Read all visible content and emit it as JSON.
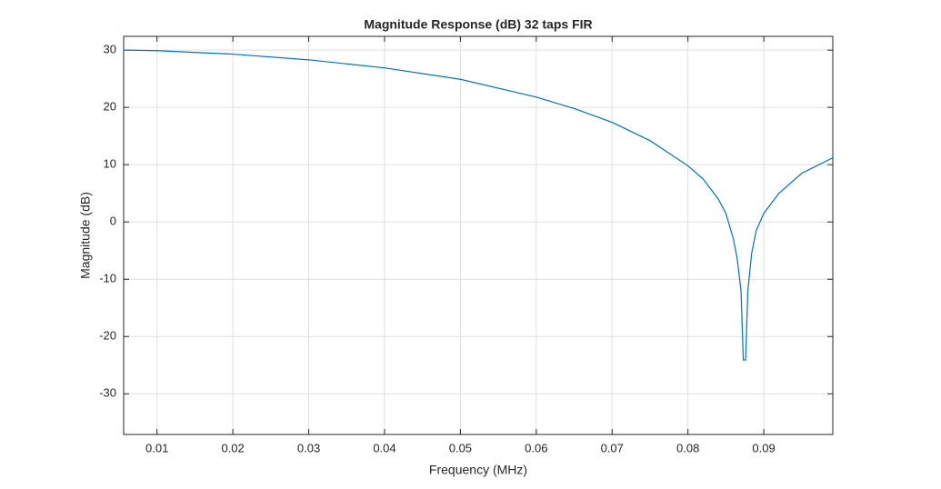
{
  "chart_data": {
    "type": "line",
    "title": "Magnitude Response (dB) 32 taps FIR",
    "xlabel": "Frequency (MHz)",
    "ylabel": "Magnitude (dB)",
    "x": [
      0.0056,
      0.01,
      0.02,
      0.03,
      0.04,
      0.05,
      0.06,
      0.065,
      0.07,
      0.075,
      0.08,
      0.082,
      0.084,
      0.085,
      0.086,
      0.0865,
      0.087,
      0.0873,
      0.0876,
      0.0879,
      0.0884,
      0.089,
      0.09,
      0.092,
      0.095,
      0.0991
    ],
    "values": [
      30.0,
      29.9,
      29.3,
      28.3,
      26.9,
      24.9,
      21.8,
      19.8,
      17.4,
      14.2,
      9.8,
      7.5,
      4.0,
      1.5,
      -3.0,
      -6.5,
      -12.0,
      -24.1,
      -24.1,
      -12.0,
      -5.5,
      -1.5,
      1.5,
      5.0,
      8.5,
      11.2
    ],
    "color": "#0072bd",
    "xlim": [
      0.0056,
      0.0991
    ],
    "xticks": [
      0.01,
      0.02,
      0.03,
      0.04,
      0.05,
      0.06,
      0.07,
      0.08,
      0.09
    ],
    "ylim": [
      -37.1,
      32.4
    ],
    "yticks": [
      -30,
      -20,
      -10,
      0,
      10,
      20,
      30
    ],
    "grid": true
  }
}
